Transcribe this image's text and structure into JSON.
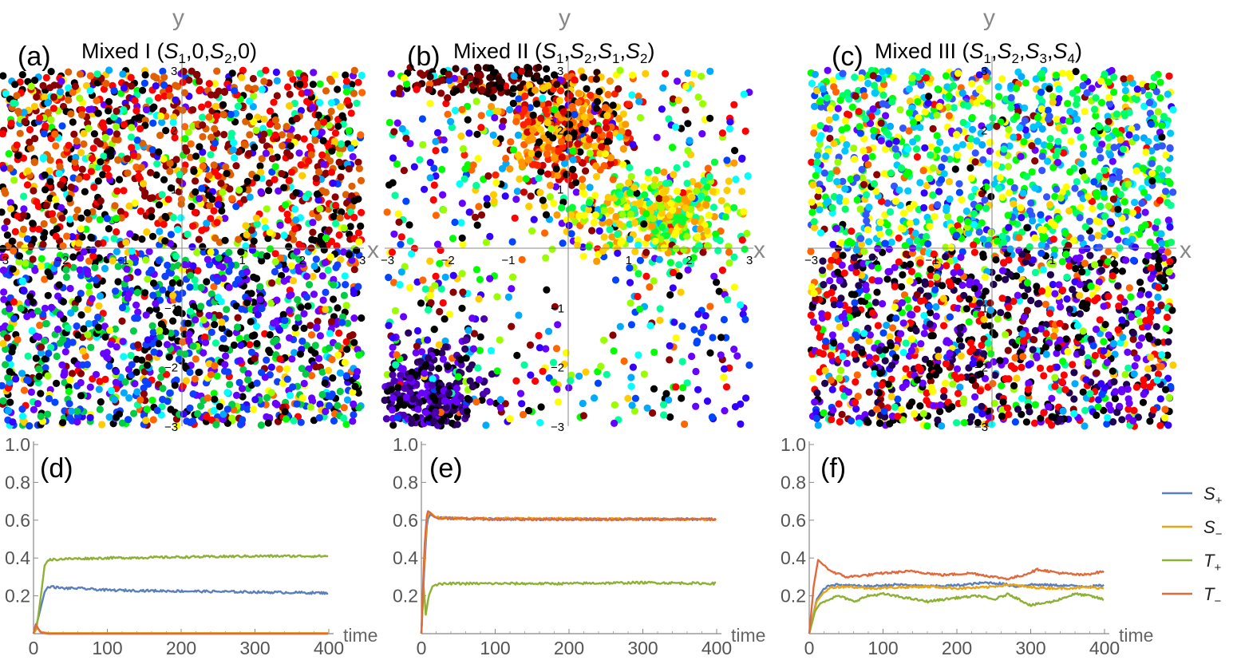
{
  "chart_data": [
    {
      "type": "scatter",
      "panel": "(a)",
      "title": "Mixed I (S₁,0,S₂,0)",
      "xlabel": "x",
      "ylabel": "y",
      "xlim": [
        -3,
        3
      ],
      "ylim": [
        -3,
        3
      ],
      "tick_labels": {
        "x_neg": [
          "−3",
          "−2",
          "−1"
        ],
        "x_pos": [
          "1",
          "2",
          "3"
        ],
        "y_pos": [
          "1",
          "2",
          "3"
        ],
        "y_neg": [
          "−1",
          "−2",
          "−3"
        ]
      },
      "points": 2400,
      "color_regions": {
        "top": [
          "#ff0000",
          "#000000",
          "#e06000",
          "#8b0000"
        ],
        "bottom": [
          "#6a00ff",
          "#1040ff",
          "#00cc44",
          "#000000"
        ]
      }
    },
    {
      "type": "scatter",
      "panel": "(b)",
      "title": "Mixed II (S₁,S₂,S₁,S₂)",
      "xlabel": "x",
      "ylabel": "y",
      "xlim": [
        -3,
        3
      ],
      "ylim": [
        -3,
        3
      ],
      "tick_labels": {
        "x_neg": [
          "−3",
          "−2",
          "−1"
        ],
        "x_pos": [
          "1",
          "2",
          "3"
        ],
        "y_pos": [
          "1",
          "2",
          "3"
        ],
        "y_neg": [
          "−1",
          "−2",
          "−3"
        ]
      },
      "points": 1900,
      "clusters": [
        {
          "center": [
            0,
            2
          ],
          "colors": [
            "#ff2000",
            "#ff6000",
            "#ff9900",
            "#cc0000"
          ]
        },
        {
          "center": [
            1.4,
            0.6
          ],
          "colors": [
            "#ffff00",
            "#99ff00",
            "#00ff33",
            "#ff9900"
          ]
        },
        {
          "center": [
            -2.3,
            -2.5
          ],
          "colors": [
            "#2a0060",
            "#4b00b0",
            "#000000",
            "#6a00ff"
          ]
        },
        {
          "center": [
            -1.5,
            2.9
          ],
          "colors": [
            "#000000",
            "#8b0000",
            "#300000"
          ]
        }
      ]
    },
    {
      "type": "scatter",
      "panel": "(c)",
      "title": "Mixed III (S₁,S₂,S₃,S₄)",
      "xlabel": "x",
      "ylabel": "y",
      "xlim": [
        -3,
        3
      ],
      "ylim": [
        -3,
        3
      ],
      "tick_labels": {
        "x_neg": [
          "−3",
          "−2",
          "−1"
        ],
        "x_pos": [
          "1",
          "2",
          "3"
        ],
        "y_pos": [
          "1",
          "2",
          "3"
        ],
        "y_neg": [
          "−1",
          "−2",
          "−3"
        ]
      },
      "points": 2400,
      "color_regions": {
        "top": [
          "#00ff66",
          "#00c8ff",
          "#3355ff",
          "#ffff00",
          "#00ff00"
        ],
        "bottom": [
          "#000000",
          "#6a00ff",
          "#ff0000",
          "#200050"
        ]
      }
    },
    {
      "type": "line",
      "panel": "(d)",
      "xlabel": "time",
      "xlim": [
        0,
        400
      ],
      "ylim": [
        0,
        1.0
      ],
      "xticks": [
        0,
        100,
        200,
        300,
        400
      ],
      "yticks": [
        0.2,
        0.4,
        0.6,
        0.8,
        1.0
      ],
      "series": [
        {
          "name": "S+",
          "color": "#5b7fba",
          "x": [
            0,
            5,
            10,
            15,
            20,
            30,
            40,
            60,
            100,
            200,
            300,
            400
          ],
          "y": [
            0.0,
            0.06,
            0.14,
            0.22,
            0.25,
            0.245,
            0.24,
            0.24,
            0.23,
            0.225,
            0.22,
            0.215
          ]
        },
        {
          "name": "S−",
          "color": "#e8a317",
          "x": [
            0,
            5,
            10,
            20,
            400
          ],
          "y": [
            0.0,
            0.03,
            0.01,
            0.003,
            0.003
          ]
        },
        {
          "name": "T+",
          "color": "#8db035",
          "x": [
            0,
            5,
            10,
            15,
            20,
            40,
            100,
            200,
            300,
            400
          ],
          "y": [
            0.0,
            0.05,
            0.2,
            0.36,
            0.39,
            0.395,
            0.4,
            0.405,
            0.41,
            0.41
          ]
        },
        {
          "name": "T−",
          "color": "#e06a3c",
          "x": [
            0,
            3,
            6,
            10,
            20,
            400
          ],
          "y": [
            0.0,
            0.05,
            0.03,
            0.005,
            0.0,
            0.0
          ]
        }
      ]
    },
    {
      "type": "line",
      "panel": "(e)",
      "xlabel": "time",
      "xlim": [
        0,
        400
      ],
      "ylim": [
        0,
        1.0
      ],
      "xticks": [
        0,
        100,
        200,
        300,
        400
      ],
      "yticks": [
        0.2,
        0.4,
        0.6,
        0.8,
        1.0
      ],
      "series": [
        {
          "name": "S+",
          "color": "#5b7fba",
          "x": [
            0,
            4,
            8,
            12,
            20,
            40,
            100,
            200,
            300,
            400
          ],
          "y": [
            0.0,
            0.35,
            0.6,
            0.63,
            0.615,
            0.61,
            0.605,
            0.605,
            0.605,
            0.605
          ]
        },
        {
          "name": "S−",
          "color": "#e8a317",
          "x": [
            0,
            4,
            8,
            12,
            20,
            40,
            400
          ],
          "y": [
            0.0,
            0.4,
            0.63,
            0.64,
            0.615,
            0.61,
            0.605
          ]
        },
        {
          "name": "T+",
          "color": "#8db035",
          "x": [
            0,
            3,
            6,
            10,
            15,
            20,
            40,
            100,
            200,
            300,
            400
          ],
          "y": [
            0.0,
            0.25,
            0.1,
            0.2,
            0.25,
            0.26,
            0.265,
            0.265,
            0.265,
            0.27,
            0.265
          ]
        },
        {
          "name": "T−",
          "color": "#e06a3c",
          "x": [
            0,
            4,
            8,
            12,
            16,
            22,
            40,
            100,
            200,
            300,
            400
          ],
          "y": [
            0.0,
            0.45,
            0.65,
            0.64,
            0.62,
            0.61,
            0.61,
            0.605,
            0.605,
            0.605,
            0.605
          ]
        }
      ]
    },
    {
      "type": "line",
      "panel": "(f)",
      "xlabel": "time",
      "xlim": [
        0,
        400
      ],
      "ylim": [
        0,
        1.0
      ],
      "xticks": [
        0,
        100,
        200,
        300,
        400
      ],
      "yticks": [
        0.2,
        0.4,
        0.6,
        0.8,
        1.0
      ],
      "series": [
        {
          "name": "S+",
          "color": "#5b7fba",
          "x": [
            0,
            10,
            20,
            30,
            50,
            80,
            120,
            160,
            200,
            240,
            260,
            280,
            300,
            340,
            380,
            400
          ],
          "y": [
            0.0,
            0.18,
            0.24,
            0.26,
            0.255,
            0.25,
            0.26,
            0.25,
            0.255,
            0.27,
            0.265,
            0.25,
            0.26,
            0.255,
            0.25,
            0.255
          ]
        },
        {
          "name": "S−",
          "color": "#e8a317",
          "x": [
            0,
            10,
            20,
            30,
            50,
            80,
            120,
            160,
            200,
            240,
            270,
            300,
            340,
            380,
            400
          ],
          "y": [
            0.0,
            0.17,
            0.22,
            0.245,
            0.25,
            0.24,
            0.245,
            0.25,
            0.24,
            0.245,
            0.26,
            0.245,
            0.24,
            0.245,
            0.24
          ]
        },
        {
          "name": "T+",
          "color": "#8db035",
          "x": [
            0,
            8,
            15,
            25,
            40,
            60,
            80,
            100,
            130,
            160,
            200,
            230,
            250,
            270,
            300,
            330,
            360,
            380,
            400
          ],
          "y": [
            0.0,
            0.12,
            0.16,
            0.18,
            0.2,
            0.17,
            0.2,
            0.21,
            0.19,
            0.17,
            0.19,
            0.2,
            0.18,
            0.21,
            0.15,
            0.17,
            0.21,
            0.2,
            0.18
          ]
        },
        {
          "name": "T−",
          "color": "#e06a3c",
          "x": [
            0,
            6,
            12,
            20,
            30,
            50,
            80,
            100,
            140,
            180,
            220,
            250,
            270,
            290,
            310,
            340,
            370,
            400
          ],
          "y": [
            0.0,
            0.25,
            0.39,
            0.36,
            0.33,
            0.3,
            0.31,
            0.32,
            0.33,
            0.31,
            0.32,
            0.3,
            0.29,
            0.31,
            0.34,
            0.32,
            0.31,
            0.33
          ]
        }
      ]
    }
  ],
  "labels": {
    "panel_a": "(a)",
    "title_a": "Mixed I (",
    "panel_b": "(b)",
    "title_b": "Mixed II (",
    "panel_c": "(c)",
    "title_c": "Mixed III (",
    "panel_d": "(d)",
    "panel_e": "(e)",
    "panel_f": "(f)",
    "axis_x": "x",
    "axis_y": "y",
    "time": "time"
  },
  "legend": [
    {
      "name": "S",
      "sub": "+",
      "color": "#5b7fba"
    },
    {
      "name": "S",
      "sub": "−",
      "color": "#e8a317"
    },
    {
      "name": "T",
      "sub": "+",
      "color": "#8db035"
    },
    {
      "name": "T",
      "sub": "−",
      "color": "#e06a3c"
    }
  ]
}
